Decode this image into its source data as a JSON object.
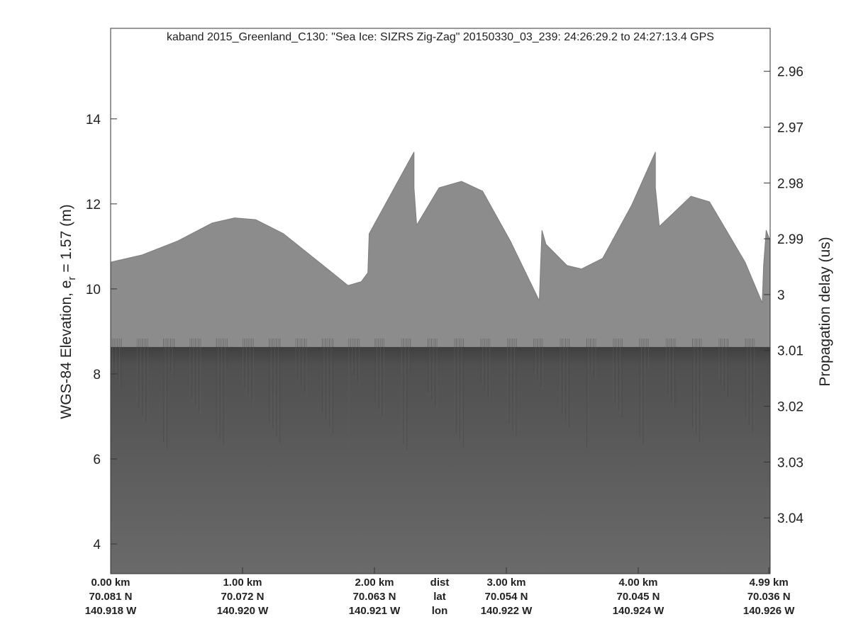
{
  "chart_data": {
    "type": "echogram",
    "title": "kaband 2015_Greenland_C130: \"Sea Ice: SIZRS Zig-Zag\"  20150330_03_239: 24:26:29.2 to 24:27:13.4 GPS",
    "ylabel": "WGS-84 Elevation, e",
    "ylabel_sub": "r",
    "ylabel_rest": " = 1.57 (m)",
    "y2label": "Propagation delay (us)",
    "xlim": [
      0,
      5.0
    ],
    "ylim": [
      3.3,
      16.13
    ],
    "yticks": [
      4,
      6,
      8,
      10,
      12,
      14
    ],
    "y2lim": [
      3.05,
      2.9523
    ],
    "y2ticks": [
      2.96,
      2.97,
      2.98,
      2.99,
      3,
      3.01,
      3.02,
      3.03,
      3.04
    ],
    "xticks": [
      {
        "value": 0,
        "label": "0.00 km"
      },
      {
        "value": 1,
        "label": "1.00 km"
      },
      {
        "value": 2,
        "label": "2.00 km"
      },
      {
        "value": 3,
        "label": "3.00 km"
      },
      {
        "value": 4,
        "label": "4.00 km"
      },
      {
        "value": 4.99,
        "label": "4.99 km"
      }
    ],
    "lat_labels": [
      "70.081 N",
      "70.072 N",
      "70.063 N",
      "70.054 N",
      "70.045 N",
      "70.036 N"
    ],
    "lon_labels": [
      "140.918 W",
      "140.920 W",
      "140.921 W",
      "140.922 W",
      "140.924 W",
      "140.926 W"
    ],
    "row_labels": [
      "dist",
      "lat",
      "lon"
    ],
    "surface": {
      "name": "surface",
      "color": "#8c8c8c",
      "x": [
        0,
        0.24,
        0.51,
        0.77,
        0.94,
        1.1,
        1.31,
        1.58,
        1.8,
        1.9,
        1.95,
        1.96,
        2.3,
        2.3,
        2.32,
        2.49,
        2.66,
        2.82,
        3.03,
        3.25,
        3.26,
        3.27,
        3.3,
        3.46,
        3.57,
        3.73,
        3.95,
        4.13,
        4.13,
        4.16,
        4.4,
        4.54,
        4.81,
        4.94,
        4.95,
        4.97,
        5.0
      ],
      "values": [
        10.63,
        10.8,
        11.13,
        11.55,
        11.67,
        11.63,
        11.3,
        10.63,
        10.08,
        10.17,
        10.38,
        11.3,
        13.22,
        12.38,
        11.5,
        12.38,
        12.53,
        12.3,
        11.13,
        9.72,
        10.6,
        11.38,
        11.05,
        10.55,
        10.47,
        10.72,
        11.97,
        13.22,
        12.38,
        11.47,
        12.18,
        12.05,
        10.63,
        9.67,
        10.55,
        11.38,
        11.13
      ]
    },
    "ice_layer": {
      "name": "ice-bottom",
      "color": "#555555",
      "value": 8.5
    }
  }
}
